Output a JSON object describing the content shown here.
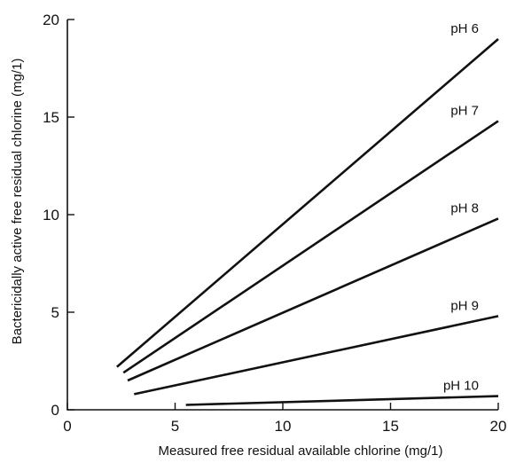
{
  "chart_data": {
    "type": "line",
    "title": "",
    "xlabel": "Measured free residual available chlorine (mg/1)",
    "ylabel": "Bactericidally active free residual chlorine (mg/1)",
    "xlim": [
      0,
      20
    ],
    "ylim": [
      0,
      20
    ],
    "xticks": [
      0,
      5,
      10,
      15,
      20
    ],
    "yticks": [
      0,
      5,
      10,
      15,
      20
    ],
    "xtick_labels": [
      "0",
      "5",
      "10",
      "15",
      "20"
    ],
    "ytick_labels": [
      "0",
      "5",
      "10",
      "15",
      "20"
    ],
    "grid": false,
    "legend": "none (series labelled at line ends)",
    "series": [
      {
        "name": "pH 6",
        "x": [
          2.3,
          20
        ],
        "y": [
          2.2,
          19
        ]
      },
      {
        "name": "pH 7",
        "x": [
          2.6,
          20
        ],
        "y": [
          1.9,
          14.8
        ]
      },
      {
        "name": "pH 8",
        "x": [
          2.8,
          20
        ],
        "y": [
          1.5,
          9.8
        ]
      },
      {
        "name": "pH 9",
        "x": [
          3.1,
          20
        ],
        "y": [
          0.8,
          4.8
        ]
      },
      {
        "name": "pH 10",
        "x": [
          5.5,
          20
        ],
        "y": [
          0.25,
          0.7
        ]
      }
    ]
  }
}
